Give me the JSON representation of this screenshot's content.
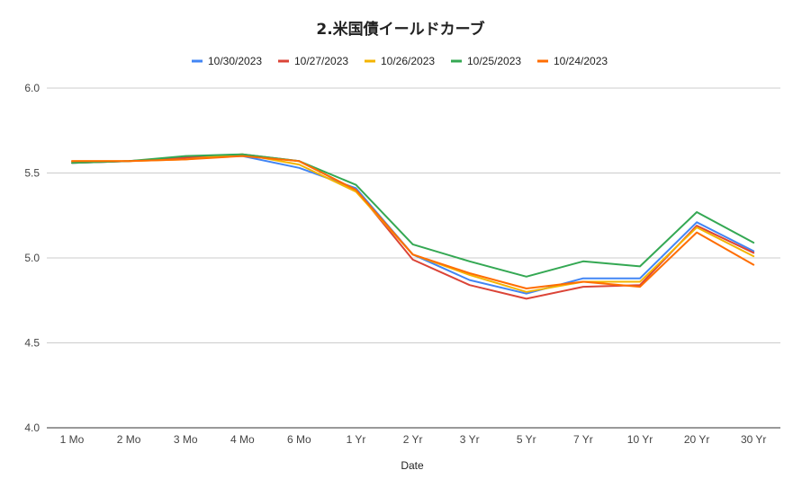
{
  "chart_data": {
    "type": "line",
    "title": "2.米国債イールドカーブ",
    "xlabel": "Date",
    "ylabel": "",
    "ylim": [
      4.0,
      6.0
    ],
    "yticks": [
      "4.0",
      "4.5",
      "5.0",
      "5.5",
      "6.0"
    ],
    "grid": true,
    "legend_position": "top",
    "categories": [
      "1 Mo",
      "2 Mo",
      "3 Mo",
      "4 Mo",
      "6 Mo",
      "1 Yr",
      "2 Yr",
      "3 Yr",
      "5 Yr",
      "7 Yr",
      "10 Yr",
      "20 Yr",
      "30 Yr"
    ],
    "series": [
      {
        "name": "10/30/2023",
        "color": "#4285f4",
        "values": [
          5.56,
          5.57,
          5.59,
          5.6,
          5.53,
          5.41,
          5.02,
          4.87,
          4.79,
          4.88,
          4.88,
          5.21,
          5.04
        ]
      },
      {
        "name": "10/27/2023",
        "color": "#db4437",
        "values": [
          5.56,
          5.57,
          5.59,
          5.61,
          5.57,
          5.4,
          4.99,
          4.84,
          4.76,
          4.83,
          4.84,
          5.19,
          5.03
        ]
      },
      {
        "name": "10/26/2023",
        "color": "#f4b400",
        "values": [
          5.57,
          5.57,
          5.58,
          5.61,
          5.55,
          5.39,
          5.02,
          4.9,
          4.8,
          4.86,
          4.86,
          5.18,
          5.01
        ]
      },
      {
        "name": "10/25/2023",
        "color": "#34a853",
        "values": [
          5.56,
          5.57,
          5.6,
          5.61,
          5.57,
          5.43,
          5.08,
          4.98,
          4.89,
          4.98,
          4.95,
          5.27,
          5.09
        ]
      },
      {
        "name": "10/24/2023",
        "color": "#ff6d01",
        "values": [
          5.57,
          5.57,
          5.58,
          5.6,
          5.57,
          5.4,
          5.02,
          4.91,
          4.82,
          4.86,
          4.83,
          5.15,
          4.96
        ]
      }
    ]
  }
}
